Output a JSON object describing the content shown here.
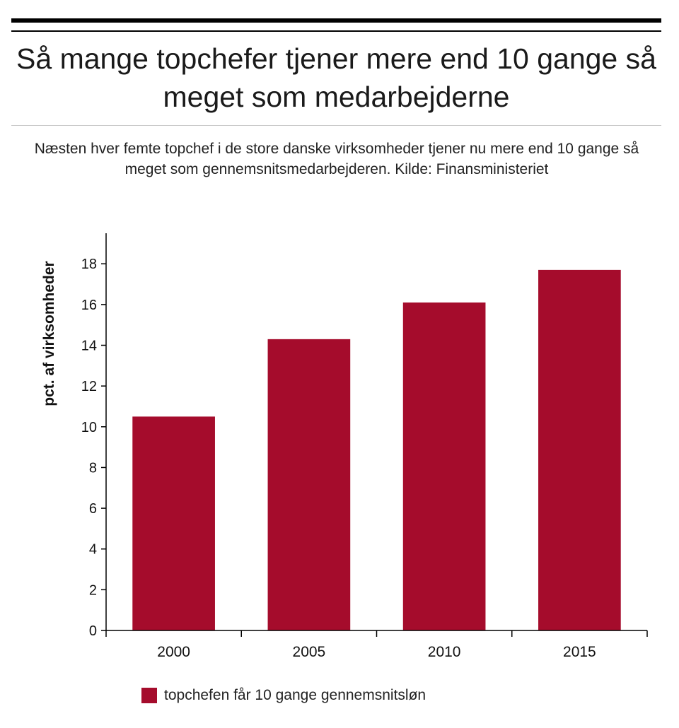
{
  "header": {
    "title": "Så mange topchefer tjener mere end 10 gange så meget som medarbejderne",
    "subtitle": "Næsten hver femte topchef i de store danske virksomheder tjener nu mere end 10 gange så meget som gennemsnitsmedarbejderen. Kilde: Finansministeriet"
  },
  "chart_data": {
    "type": "bar",
    "categories": [
      "2000",
      "2005",
      "2010",
      "2015"
    ],
    "series": [
      {
        "name": "topchefen får 10 gange gennemsnitsløn",
        "values": [
          10.5,
          14.3,
          16.1,
          17.7
        ],
        "color": "#a50c2c"
      }
    ],
    "ylabel": "pct. af virksomheder",
    "xlabel": "",
    "ylim": [
      0,
      19.5
    ],
    "yticks": [
      0,
      2,
      4,
      6,
      8,
      10,
      12,
      14,
      16,
      18
    ],
    "grid": false,
    "legend_position": "bottom-left"
  }
}
